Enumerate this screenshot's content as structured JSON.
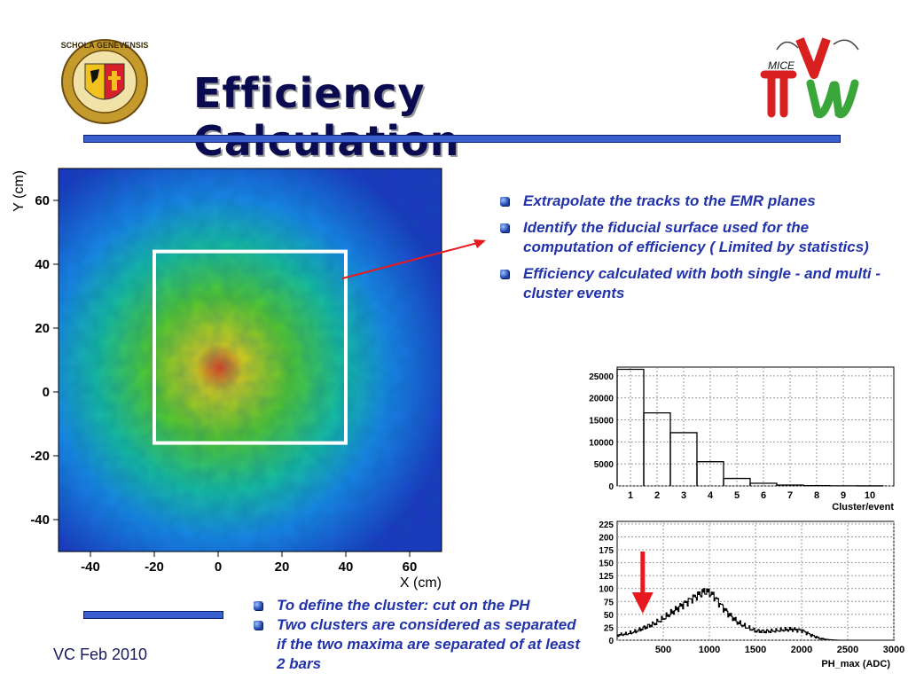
{
  "slide": {
    "title": "Efficiency Calculation",
    "footer": "VC Feb 2010"
  },
  "logos": {
    "left": {
      "text": "SCHOLA GENEVENSIS",
      "icon": "geneva-seal"
    },
    "right": {
      "text": "MICE",
      "icon": "mice-logo"
    }
  },
  "bullets_right": [
    "Extrapolate the tracks to the EMR planes",
    "Identify the fiducial surface used for the computation of efficiency ( Limited by statistics)",
    "Efficiency calculated with both single - and multi - cluster events"
  ],
  "bullets_bottom": [
    "To define the cluster: cut on the PH",
    "Two clusters are considered as separated if the two maxima are separated of at least 2 bars"
  ],
  "chart_data": [
    {
      "type": "heatmap",
      "xlabel": "X (cm)",
      "ylabel": "Y (cm)",
      "xlim": [
        -50,
        70
      ],
      "ylim": [
        -50,
        70
      ],
      "xticks": [
        -40,
        -20,
        0,
        20,
        40,
        60
      ],
      "yticks": [
        -40,
        -20,
        0,
        20,
        40,
        60
      ],
      "fiducial_box": {
        "x": [
          -20,
          40
        ],
        "y": [
          -16,
          44
        ]
      }
    },
    {
      "type": "bar",
      "xlabel": "Cluster/event",
      "categories": [
        "1",
        "2",
        "3",
        "4",
        "5",
        "6",
        "7",
        "8",
        "9",
        "10"
      ],
      "values": [
        26500,
        16600,
        12100,
        5500,
        1700,
        600,
        200,
        80,
        30,
        10
      ],
      "ylim": [
        0,
        27000
      ],
      "yticks": [
        "0",
        "5000",
        "10000",
        "15000",
        "20000",
        "25000"
      ],
      "grid": true
    },
    {
      "type": "line",
      "xlabel": "PH_max (ADC)",
      "xlim": [
        0,
        3000
      ],
      "ylim": [
        0,
        230
      ],
      "xticks": [
        "500",
        "1000",
        "1500",
        "2000",
        "2500",
        "3000"
      ],
      "yticks": [
        "0",
        "25",
        "50",
        "75",
        "100",
        "125",
        "150",
        "175",
        "200",
        "225"
      ],
      "x": [
        0,
        100,
        200,
        300,
        400,
        500,
        600,
        700,
        800,
        900,
        950,
        1000,
        1050,
        1100,
        1200,
        1300,
        1400,
        1500,
        1600,
        1700,
        1800,
        1900,
        2000,
        2100,
        2200,
        2300,
        2400,
        2500,
        2600,
        2800,
        3000
      ],
      "values": [
        10,
        12,
        17,
        25,
        32,
        42,
        55,
        68,
        80,
        90,
        95,
        92,
        85,
        73,
        52,
        35,
        25,
        18,
        17,
        18,
        20,
        21,
        19,
        10,
        3,
        1,
        0,
        0,
        0,
        0,
        0
      ],
      "grid": true,
      "annotation_arrow_x": 200,
      "arrow_color": "#e8191e"
    }
  ]
}
